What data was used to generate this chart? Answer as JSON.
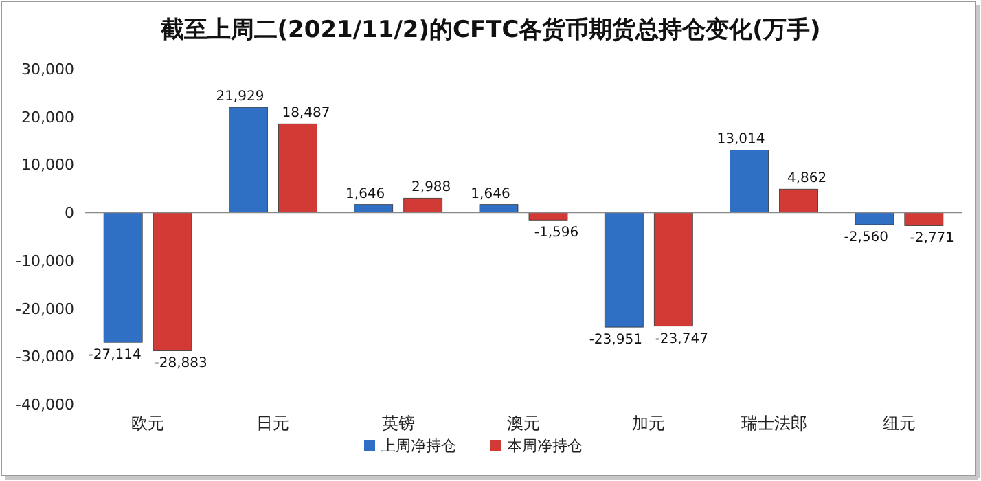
{
  "chart_data": {
    "type": "bar",
    "title": "截至上周二(2021/11/2)的CFTC各货币期货总持仓变化(万手)",
    "categories": [
      "欧元",
      "日元",
      "英镑",
      "澳元",
      "加元",
      "瑞士法郎",
      "纽元"
    ],
    "series": [
      {
        "name": "上周净持仓",
        "color": "#2f6fc4",
        "values": [
          -27114,
          21929,
          1646,
          1646,
          -23951,
          13014,
          -2560
        ],
        "value_labels": [
          "-27,114",
          "21,929",
          "1,646",
          "1,646",
          "-23,951",
          "13,014",
          "-2,560"
        ]
      },
      {
        "name": "本周净持仓",
        "color": "#d23a36",
        "values": [
          -28883,
          18487,
          2988,
          -1596,
          -23747,
          4862,
          -2771
        ],
        "value_labels": [
          "-28,883",
          "18,487",
          "2,988",
          "-1,596",
          "-23,747",
          "4,862",
          "-2,771"
        ]
      }
    ],
    "ylim": [
      -40000,
      30000
    ],
    "yticks": [
      {
        "value": -40000,
        "label": "-40,000"
      },
      {
        "value": -30000,
        "label": "-30,000"
      },
      {
        "value": -20000,
        "label": "-20,000"
      },
      {
        "value": -10000,
        "label": "-10,000"
      },
      0,
      {
        "value": 10000,
        "label": "10,000"
      },
      {
        "value": 20000,
        "label": "20,000"
      },
      {
        "value": 30000,
        "label": "30,000"
      }
    ],
    "legend": "bottom"
  }
}
